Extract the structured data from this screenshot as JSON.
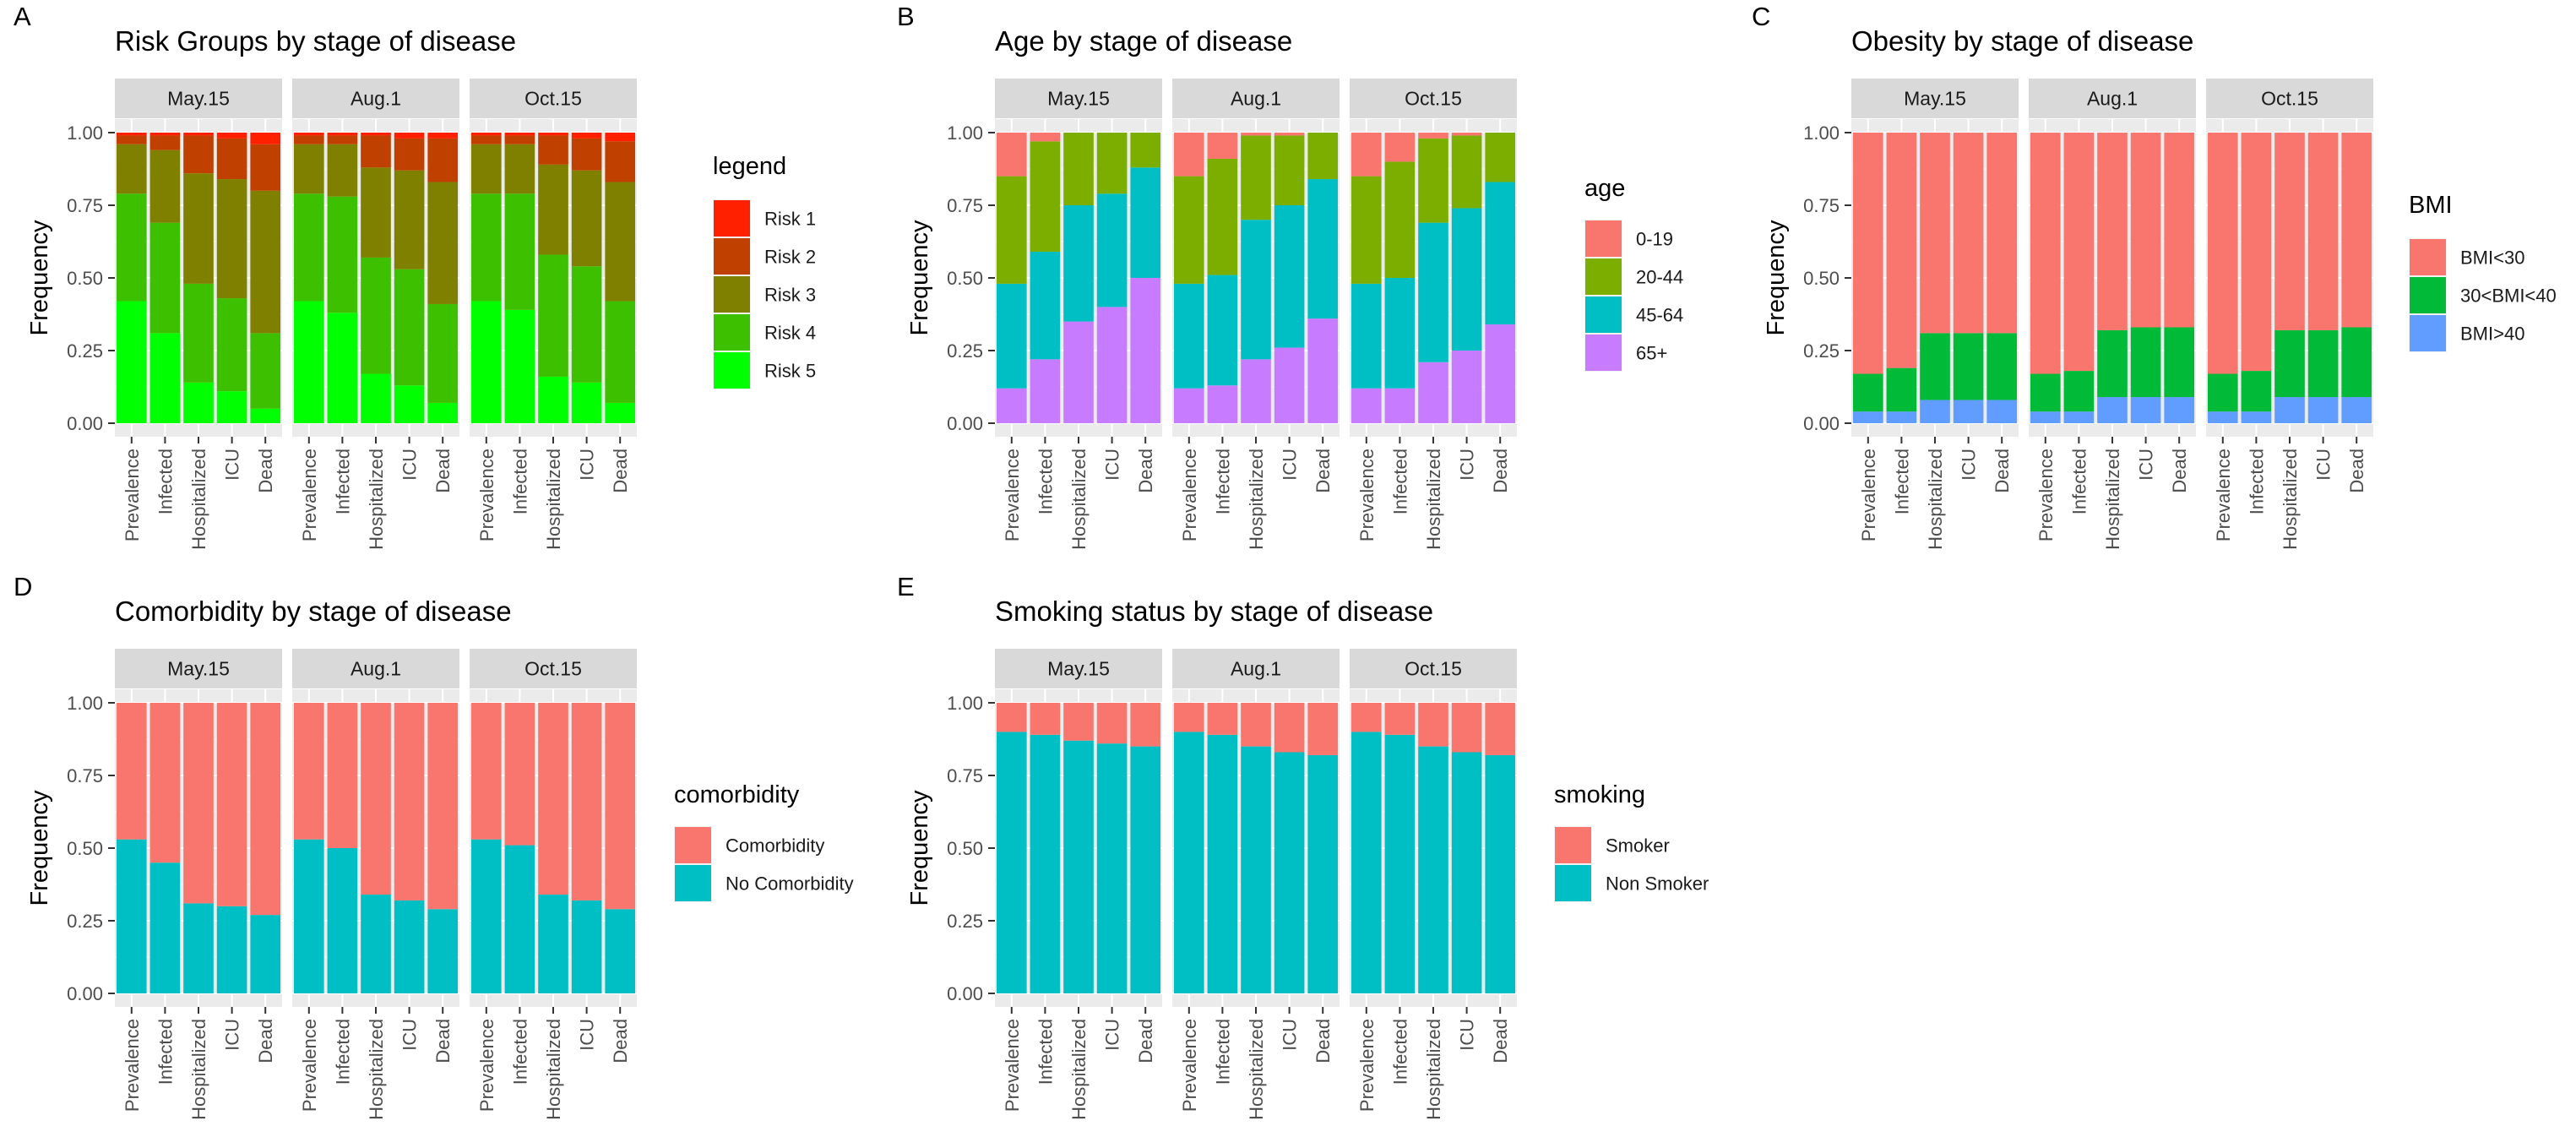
{
  "chart_data": [
    {
      "id": "A",
      "type": "bar",
      "stacked": true,
      "panel_label": "A",
      "title": "Risk Groups by stage of disease",
      "ylabel": "Frequency",
      "xlabel": "",
      "ylim": [
        0,
        1
      ],
      "yticks": [
        "0.00",
        "0.25",
        "0.50",
        "0.75",
        "1.00"
      ],
      "grid": true,
      "legend_position": "right",
      "legend_title": "legend",
      "facets": [
        "May.15",
        "Aug.1",
        "Oct.15"
      ],
      "categories": [
        "Prevalence",
        "Infected",
        "Hospitalized",
        "ICU",
        "Dead"
      ],
      "series": [
        {
          "name": "Risk 5",
          "color": "#00FF00",
          "values": [
            [
              0.42,
              0.31,
              0.14,
              0.11,
              0.05
            ],
            [
              0.42,
              0.38,
              0.17,
              0.13,
              0.07
            ],
            [
              0.42,
              0.39,
              0.16,
              0.14,
              0.07
            ]
          ]
        },
        {
          "name": "Risk 4",
          "color": "#3CC000",
          "values": [
            [
              0.37,
              0.38,
              0.34,
              0.32,
              0.26
            ],
            [
              0.37,
              0.4,
              0.4,
              0.4,
              0.34
            ],
            [
              0.37,
              0.4,
              0.42,
              0.4,
              0.35
            ]
          ]
        },
        {
          "name": "Risk 3",
          "color": "#7F7F00",
          "values": [
            [
              0.17,
              0.25,
              0.38,
              0.41,
              0.49
            ],
            [
              0.17,
              0.18,
              0.31,
              0.34,
              0.42
            ],
            [
              0.17,
              0.17,
              0.31,
              0.33,
              0.41
            ]
          ]
        },
        {
          "name": "Risk 2",
          "color": "#C04000",
          "values": [
            [
              0.03,
              0.05,
              0.13,
              0.14,
              0.16
            ],
            [
              0.03,
              0.03,
              0.11,
              0.11,
              0.15
            ],
            [
              0.03,
              0.03,
              0.1,
              0.11,
              0.14
            ]
          ]
        },
        {
          "name": "Risk 1",
          "color": "#FF2000",
          "values": [
            [
              0.01,
              0.01,
              0.01,
              0.02,
              0.04
            ],
            [
              0.01,
              0.01,
              0.01,
              0.02,
              0.02
            ],
            [
              0.01,
              0.01,
              0.01,
              0.02,
              0.03
            ]
          ]
        }
      ]
    },
    {
      "id": "B",
      "type": "bar",
      "stacked": true,
      "panel_label": "B",
      "title": "Age by stage of disease",
      "ylabel": "Frequency",
      "xlabel": "",
      "ylim": [
        0,
        1
      ],
      "yticks": [
        "0.00",
        "0.25",
        "0.50",
        "0.75",
        "1.00"
      ],
      "grid": true,
      "legend_position": "right",
      "legend_title": "age",
      "facets": [
        "May.15",
        "Aug.1",
        "Oct.15"
      ],
      "categories": [
        "Prevalence",
        "Infected",
        "Hospitalized",
        "ICU",
        "Dead"
      ],
      "series": [
        {
          "name": "65+",
          "color": "#C77CFF",
          "values": [
            [
              0.12,
              0.22,
              0.35,
              0.4,
              0.5
            ],
            [
              0.12,
              0.13,
              0.22,
              0.26,
              0.36
            ],
            [
              0.12,
              0.12,
              0.21,
              0.25,
              0.34
            ]
          ]
        },
        {
          "name": "45-64",
          "color": "#00BFC4",
          "values": [
            [
              0.36,
              0.37,
              0.4,
              0.39,
              0.38
            ],
            [
              0.36,
              0.38,
              0.48,
              0.49,
              0.48
            ],
            [
              0.36,
              0.38,
              0.48,
              0.49,
              0.49
            ]
          ]
        },
        {
          "name": "20-44",
          "color": "#7CAE00",
          "values": [
            [
              0.37,
              0.38,
              0.25,
              0.21,
              0.12
            ],
            [
              0.37,
              0.4,
              0.29,
              0.24,
              0.16
            ],
            [
              0.37,
              0.4,
              0.29,
              0.25,
              0.17
            ]
          ]
        },
        {
          "name": "0-19",
          "color": "#F8766D",
          "values": [
            [
              0.15,
              0.03,
              0.0,
              0.0,
              0.0
            ],
            [
              0.15,
              0.09,
              0.01,
              0.01,
              0.0
            ],
            [
              0.15,
              0.1,
              0.02,
              0.01,
              0.0
            ]
          ]
        }
      ]
    },
    {
      "id": "C",
      "type": "bar",
      "stacked": true,
      "panel_label": "C",
      "title": "Obesity by stage of disease",
      "ylabel": "Frequency",
      "xlabel": "",
      "ylim": [
        0,
        1
      ],
      "yticks": [
        "0.00",
        "0.25",
        "0.50",
        "0.75",
        "1.00"
      ],
      "grid": true,
      "legend_position": "right",
      "legend_title": "BMI",
      "facets": [
        "May.15",
        "Aug.1",
        "Oct.15"
      ],
      "categories": [
        "Prevalence",
        "Infected",
        "Hospitalized",
        "ICU",
        "Dead"
      ],
      "series": [
        {
          "name": "BMI>40",
          "color": "#619CFF",
          "values": [
            [
              0.04,
              0.04,
              0.08,
              0.08,
              0.08
            ],
            [
              0.04,
              0.04,
              0.09,
              0.09,
              0.09
            ],
            [
              0.04,
              0.04,
              0.09,
              0.09,
              0.09
            ]
          ]
        },
        {
          "name": "30<BMI<40",
          "color": "#00BA38",
          "values": [
            [
              0.13,
              0.15,
              0.23,
              0.23,
              0.23
            ],
            [
              0.13,
              0.14,
              0.23,
              0.24,
              0.24
            ],
            [
              0.13,
              0.14,
              0.23,
              0.23,
              0.24
            ]
          ]
        },
        {
          "name": "BMI<30",
          "color": "#F8766D",
          "values": [
            [
              0.83,
              0.81,
              0.69,
              0.69,
              0.69
            ],
            [
              0.83,
              0.82,
              0.68,
              0.67,
              0.67
            ],
            [
              0.83,
              0.82,
              0.68,
              0.68,
              0.67
            ]
          ]
        }
      ]
    },
    {
      "id": "D",
      "type": "bar",
      "stacked": true,
      "panel_label": "D",
      "title": "Comorbidity by stage of disease",
      "ylabel": "Frequency",
      "xlabel": "",
      "ylim": [
        0,
        1
      ],
      "yticks": [
        "0.00",
        "0.25",
        "0.50",
        "0.75",
        "1.00"
      ],
      "grid": true,
      "legend_position": "right",
      "legend_title": "comorbidity",
      "facets": [
        "May.15",
        "Aug.1",
        "Oct.15"
      ],
      "categories": [
        "Prevalence",
        "Infected",
        "Hospitalized",
        "ICU",
        "Dead"
      ],
      "series": [
        {
          "name": "No Comorbidity",
          "color": "#00BFC4",
          "values": [
            [
              0.53,
              0.45,
              0.31,
              0.3,
              0.27
            ],
            [
              0.53,
              0.5,
              0.34,
              0.32,
              0.29
            ],
            [
              0.53,
              0.51,
              0.34,
              0.32,
              0.29
            ]
          ]
        },
        {
          "name": "Comorbidity",
          "color": "#F8766D",
          "values": [
            [
              0.47,
              0.55,
              0.69,
              0.7,
              0.73
            ],
            [
              0.47,
              0.5,
              0.66,
              0.68,
              0.71
            ],
            [
              0.47,
              0.49,
              0.66,
              0.68,
              0.71
            ]
          ]
        }
      ]
    },
    {
      "id": "E",
      "type": "bar",
      "stacked": true,
      "panel_label": "E",
      "title": "Smoking status by stage of disease",
      "ylabel": "Frequency",
      "xlabel": "",
      "ylim": [
        0,
        1
      ],
      "yticks": [
        "0.00",
        "0.25",
        "0.50",
        "0.75",
        "1.00"
      ],
      "grid": true,
      "legend_position": "right",
      "legend_title": "smoking",
      "facets": [
        "May.15",
        "Aug.1",
        "Oct.15"
      ],
      "categories": [
        "Prevalence",
        "Infected",
        "Hospitalized",
        "ICU",
        "Dead"
      ],
      "series": [
        {
          "name": "Non Smoker",
          "color": "#00BFC4",
          "values": [
            [
              0.9,
              0.89,
              0.87,
              0.86,
              0.85
            ],
            [
              0.9,
              0.89,
              0.85,
              0.83,
              0.82
            ],
            [
              0.9,
              0.89,
              0.85,
              0.83,
              0.82
            ]
          ]
        },
        {
          "name": "Smoker",
          "color": "#F8766D",
          "values": [
            [
              0.1,
              0.11,
              0.13,
              0.14,
              0.15
            ],
            [
              0.1,
              0.11,
              0.15,
              0.17,
              0.18
            ],
            [
              0.1,
              0.11,
              0.15,
              0.17,
              0.18
            ]
          ]
        }
      ]
    }
  ]
}
